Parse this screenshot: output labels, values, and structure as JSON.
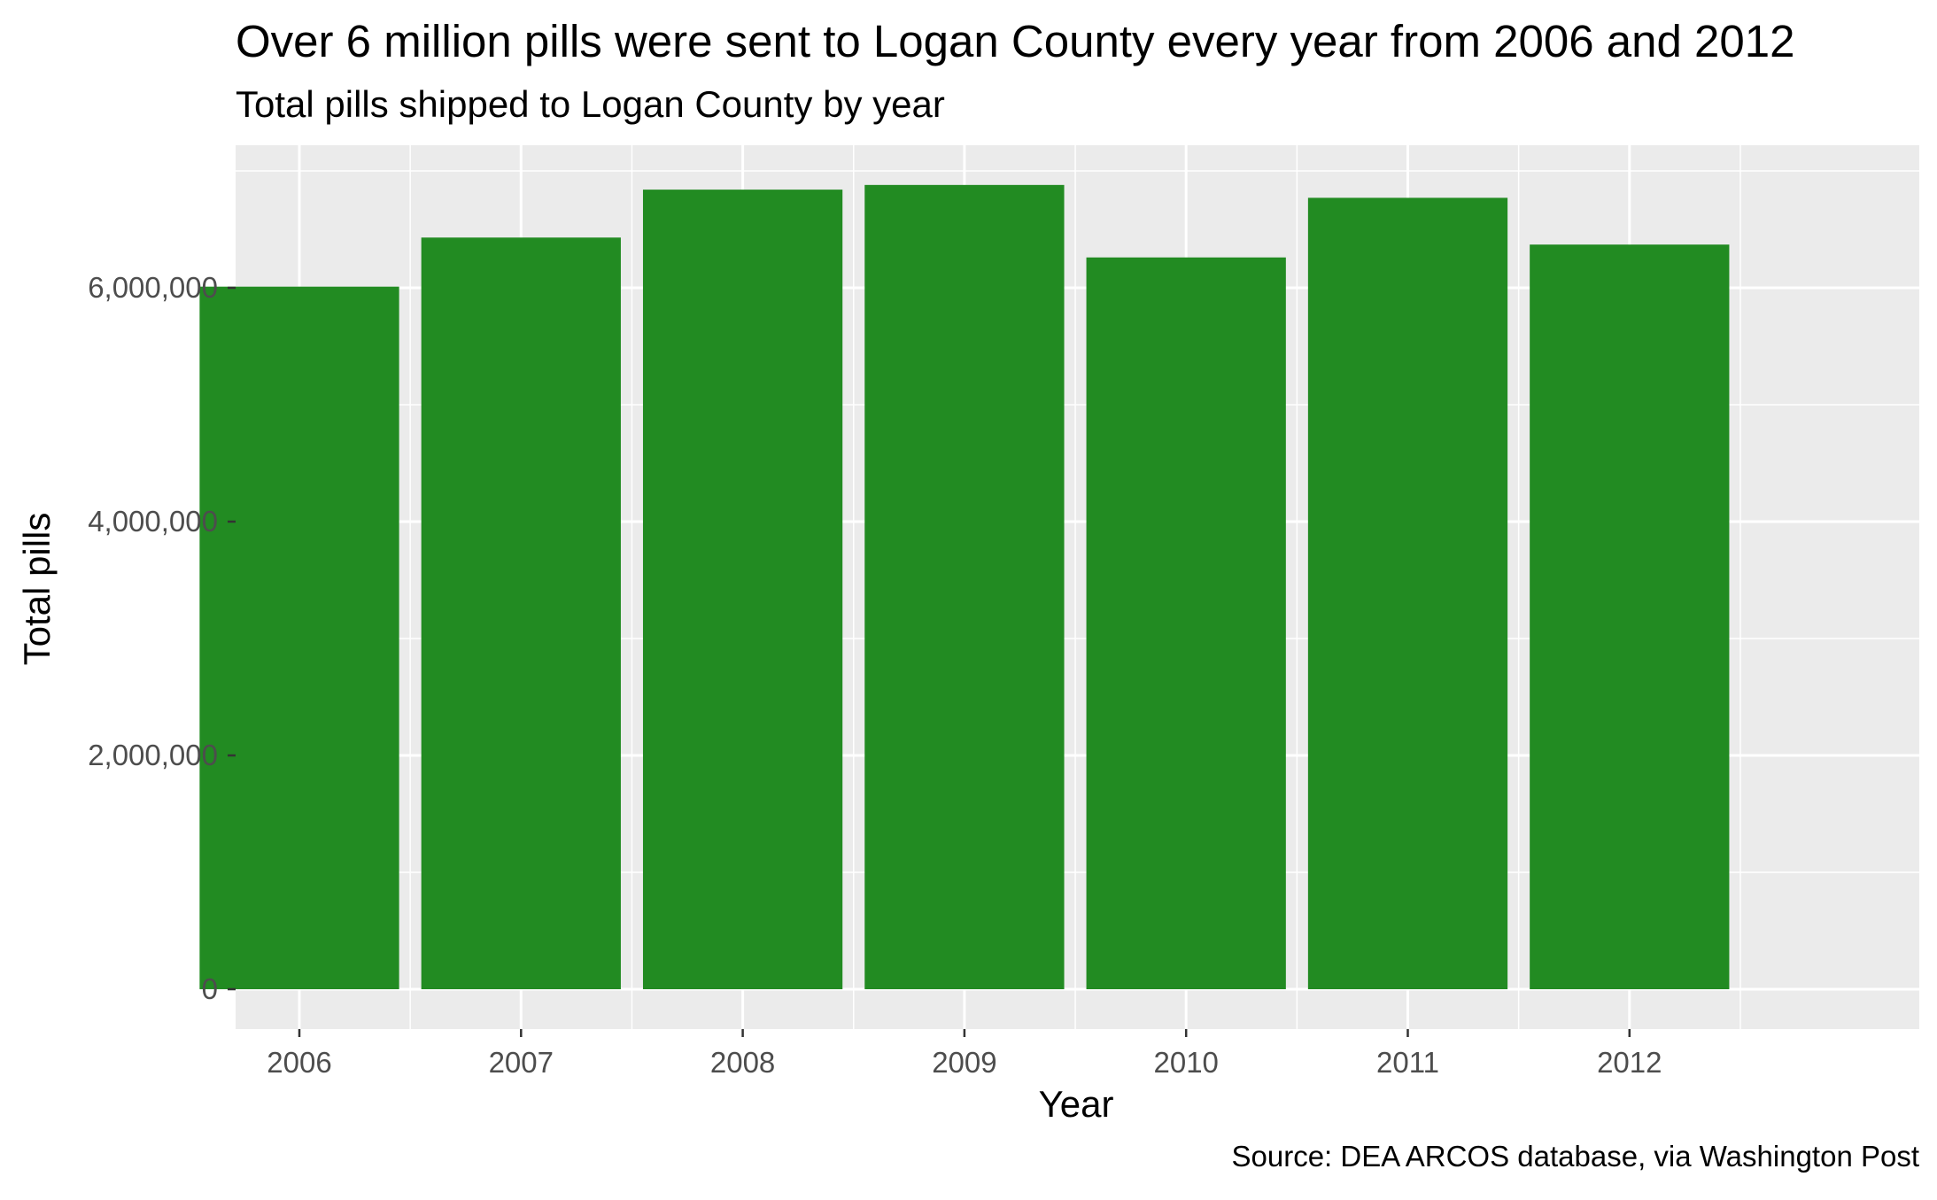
{
  "chart_data": {
    "type": "bar",
    "title": "Over 6 million pills were sent to Logan County every year from 2006 and 2012",
    "subtitle": "Total pills shipped to Logan County by year",
    "xlabel": "Year",
    "ylabel": "Total pills",
    "caption": "Source: DEA ARCOS database, via Washington Post",
    "categories": [
      "2006",
      "2007",
      "2008",
      "2009",
      "2010",
      "2011",
      "2012"
    ],
    "values": [
      6010000,
      6430000,
      6840000,
      6880000,
      6260000,
      6770000,
      6370000
    ],
    "ylim": [
      0,
      7000000
    ],
    "yticks": [
      {
        "value": 0,
        "label": "0"
      },
      {
        "value": 2000000,
        "label": "2,000,000"
      },
      {
        "value": 4000000,
        "label": "4,000,000"
      },
      {
        "value": 6000000,
        "label": "6,000,000"
      }
    ],
    "y_minor_ticks": [
      1000000,
      3000000,
      5000000,
      7000000
    ],
    "grid": true,
    "bar_color": "#228B22",
    "panel_background": "#EBEBEB",
    "grid_color": "#FFFFFF",
    "legend": "none"
  }
}
